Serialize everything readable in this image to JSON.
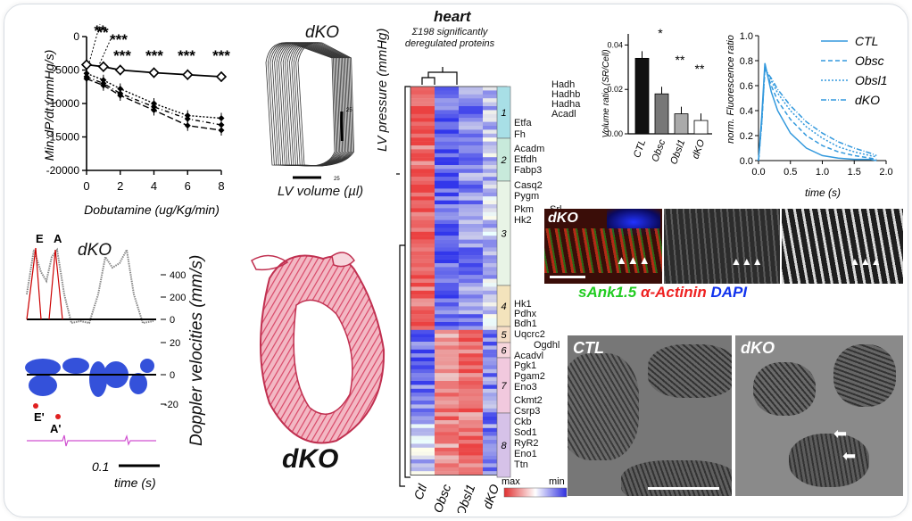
{
  "dobutamine_panel": {
    "ylabel": "Min dP/dt (mmHg/s)",
    "xlabel": "Dobutamine (ug/Kg/min)",
    "yticks": [
      "0",
      "-5000",
      "-10000",
      "-15000",
      "-20000"
    ],
    "xticks": [
      "0",
      "2",
      "4",
      "6",
      "8"
    ],
    "sig": [
      "**",
      "**",
      "***",
      "***",
      "***",
      "***",
      "***"
    ]
  },
  "pv_loop": {
    "title": "dKO",
    "ylabel": "LV pressure (mmHg)",
    "xlabel": "LV volume (µl)",
    "scale_y": "25",
    "scale_x": "25"
  },
  "doppler": {
    "title": "dKO",
    "ylabel": "Doppler velocities (mm/s)",
    "ticks_top": [
      "400",
      "200",
      "0"
    ],
    "ticks_bottom": [
      "20",
      "0",
      "-20"
    ],
    "labels": [
      "E",
      "A",
      "E'",
      "A'"
    ],
    "scale": "0.1",
    "xlabel": "time (s)"
  },
  "histology": {
    "label": "dKO"
  },
  "heatmap": {
    "title": "heart",
    "subtitle": "Σ198 significantly deregulated proteins",
    "columns": [
      "Ctl",
      "Obsc",
      "Obsl1",
      "dKO"
    ],
    "legend_max": "max",
    "legend_min": "min",
    "clusters": [
      "1",
      "2",
      "3",
      "4",
      "5",
      "6",
      "7",
      "8"
    ],
    "proteins": [
      "Etfa",
      "Fh",
      "Hadh",
      "Hadhb",
      "Hadha",
      "Acadl",
      "Acadm",
      "Etfdh",
      "Fabp3",
      "Casq2",
      "Pygm",
      "Pkm",
      "Srl",
      "Hk2",
      "Hk1",
      "Pdhx",
      "Bdh1",
      "Uqcrc2",
      "Ogdhl",
      "Acadvl",
      "Pgk1",
      "Pgam2",
      "Eno3",
      "Ckmt2",
      "Csrp3",
      "Ckb",
      "Sod1",
      "RyR2",
      "Eno1",
      "Ttn"
    ]
  },
  "volume_ratio": {
    "ylabel": "Volume ratio (SR/Cell)",
    "yticks": [
      "0.04",
      "0.02",
      "0.00"
    ],
    "categories": [
      "CTL",
      "Obsc",
      "Obsl1",
      "dKO"
    ],
    "sig": [
      "*",
      "**",
      "**"
    ]
  },
  "fluorescence": {
    "ylabel": "norm. Fluorescence ratio",
    "xlabel": "time (s)",
    "yticks": [
      "1.0",
      "0.8",
      "0.6",
      "0.4",
      "0.2",
      "0.0"
    ],
    "xticks": [
      "0.0",
      "0.5",
      "1.0",
      "1.5",
      "2.0"
    ],
    "legend": [
      "CTL",
      "Obsc",
      "Obsl1",
      "dKO"
    ],
    "color": "#3399dd"
  },
  "immuno": {
    "label": "dKO",
    "stain1": "sAnk1.5",
    "stain2": "α-Actinin",
    "stain3": "DAPI",
    "c1": "#22cc22",
    "c2": "#ee2222",
    "c3": "#1133ee"
  },
  "em": {
    "left_label": "CTL",
    "right_label": "dKO"
  },
  "chart_data": [
    {
      "type": "line",
      "xlabel": "Dobutamine (ug/Kg/min)",
      "ylabel": "Min dP/dt (mmHg/s)",
      "ylim": [
        -20000,
        0
      ],
      "xlim": [
        0,
        8
      ],
      "x": [
        0,
        1,
        2,
        4,
        6,
        8
      ],
      "series": [
        {
          "values": [
            -4200,
            -4500,
            -5000,
            -5400,
            -5700,
            -6000
          ]
        },
        {
          "values": [
            -5500,
            -6500,
            -7800,
            -10000,
            -11800,
            -12200
          ]
        },
        {
          "values": [
            -6000,
            -7000,
            -8500,
            -10500,
            -12300,
            -13200
          ]
        },
        {
          "values": [
            -6300,
            -7300,
            -8800,
            -11000,
            -13300,
            -14000
          ]
        }
      ]
    },
    {
      "type": "bar",
      "ylabel": "Volume ratio (SR/Cell)",
      "categories": [
        "CTL",
        "Obsc",
        "Obsl1",
        "dKO"
      ],
      "values": [
        0.034,
        0.018,
        0.009,
        0.006
      ],
      "ylim": [
        0,
        0.045
      ]
    },
    {
      "type": "line",
      "xlabel": "time (s)",
      "ylabel": "norm. Fluorescence ratio",
      "xlim": [
        0,
        2
      ],
      "ylim": [
        0,
        1
      ],
      "x": [
        0,
        0.05,
        0.1,
        0.2,
        0.3,
        0.5,
        0.75,
        1.0,
        1.25,
        1.5,
        1.75,
        1.85
      ],
      "series": [
        {
          "name": "CTL",
          "values": [
            0,
            0.35,
            0.78,
            0.55,
            0.4,
            0.22,
            0.1,
            0.04,
            0.02,
            0.01,
            0.01,
            0.0
          ]
        },
        {
          "name": "Obsc",
          "values": [
            0,
            0.3,
            0.75,
            0.6,
            0.48,
            0.33,
            0.2,
            0.12,
            0.07,
            0.04,
            0.02,
            0.01
          ]
        },
        {
          "name": "Obsl1",
          "values": [
            0,
            0.3,
            0.74,
            0.64,
            0.54,
            0.4,
            0.27,
            0.18,
            0.11,
            0.07,
            0.04,
            0.03
          ]
        },
        {
          "name": "dKO",
          "values": [
            0,
            0.3,
            0.73,
            0.66,
            0.57,
            0.44,
            0.31,
            0.22,
            0.15,
            0.1,
            0.06,
            0.04
          ]
        }
      ]
    }
  ]
}
